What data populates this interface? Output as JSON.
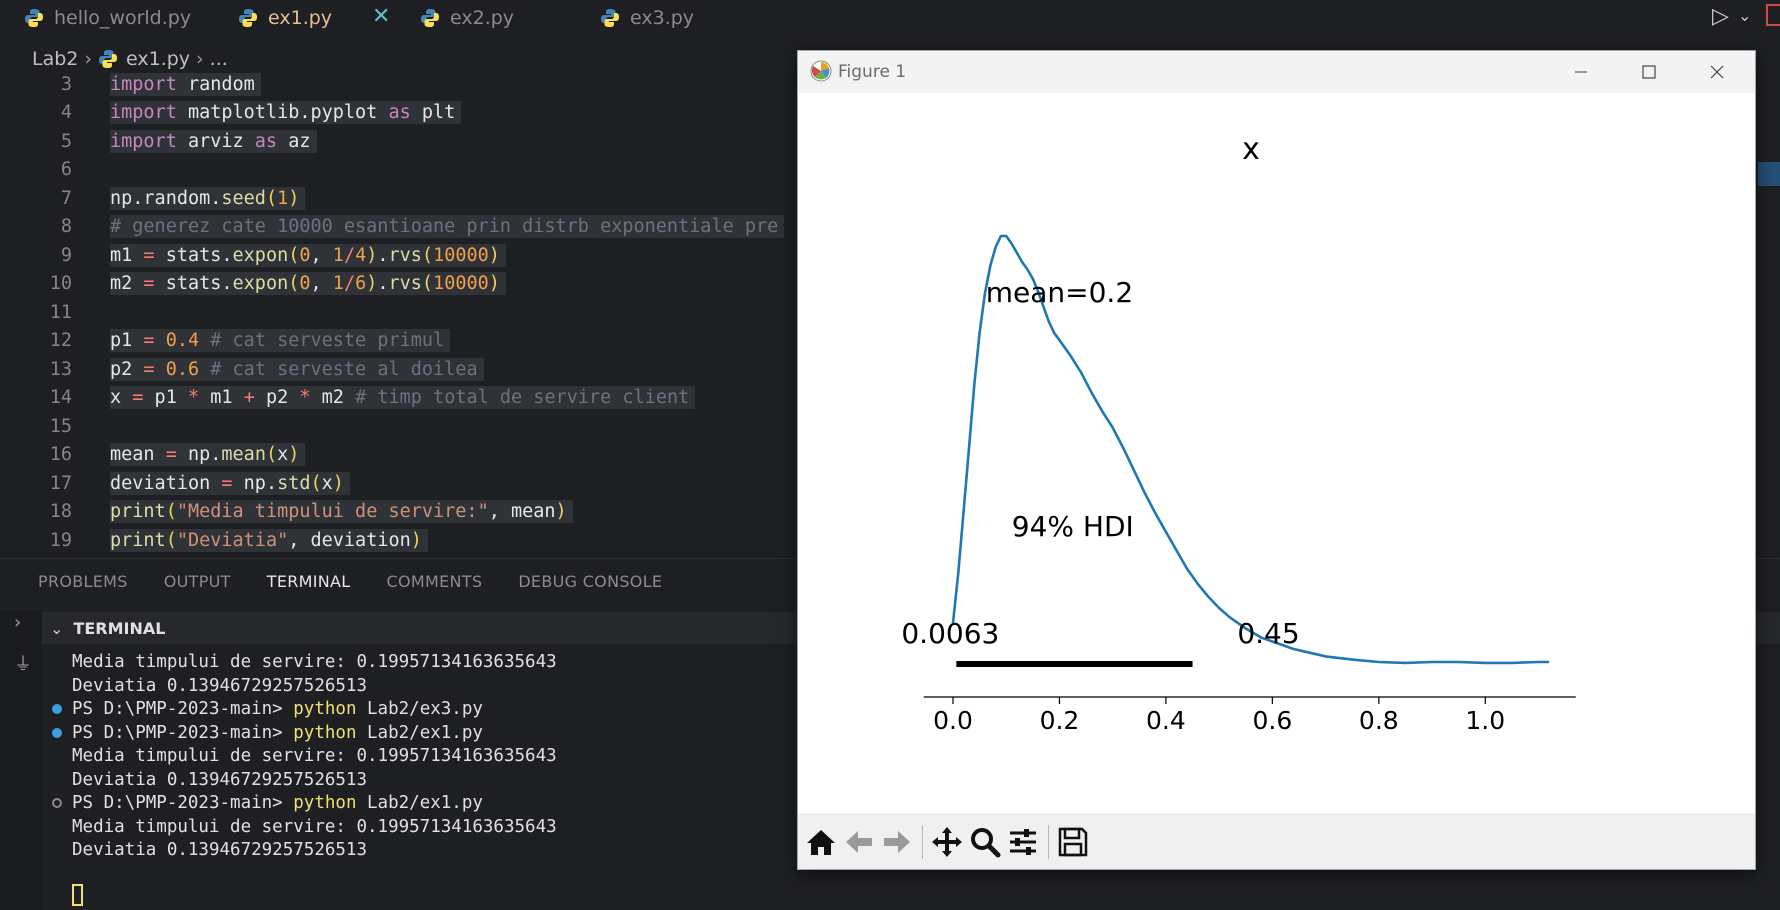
{
  "tabs": [
    {
      "label": "hello_world.py",
      "active": false
    },
    {
      "label": "ex1.py",
      "active": true
    },
    {
      "label": "ex2.py",
      "active": false
    },
    {
      "label": "ex3.py",
      "active": false
    }
  ],
  "tab_close_glyph": "✕",
  "breadcrumb": {
    "folder": "Lab2",
    "file": "ex1.py",
    "more": "..."
  },
  "editor": {
    "lines": [
      {
        "n": "3",
        "tokens": [
          [
            "kw",
            "import"
          ],
          [
            "plain",
            " random"
          ]
        ]
      },
      {
        "n": "4",
        "tokens": [
          [
            "kw",
            "import"
          ],
          [
            "plain",
            " matplotlib.pyplot "
          ],
          [
            "kw",
            "as"
          ],
          [
            "plain",
            " plt"
          ]
        ]
      },
      {
        "n": "5",
        "tokens": [
          [
            "kw",
            "import"
          ],
          [
            "plain",
            " arviz "
          ],
          [
            "kw",
            "as"
          ],
          [
            "plain",
            " az"
          ]
        ]
      },
      {
        "n": "6",
        "tokens": []
      },
      {
        "n": "7",
        "tokens": [
          [
            "plain",
            "np.random."
          ],
          [
            "fn",
            "seed"
          ],
          [
            "par",
            "("
          ],
          [
            "num",
            "1"
          ],
          [
            "par",
            ")"
          ]
        ]
      },
      {
        "n": "8",
        "tokens": [
          [
            "cm",
            "# generez cate 10000 esantioane prin distrb exponentiale pre"
          ]
        ]
      },
      {
        "n": "9",
        "tokens": [
          [
            "plain",
            "m1 "
          ],
          [
            "op",
            "="
          ],
          [
            "plain",
            " stats."
          ],
          [
            "fn",
            "expon"
          ],
          [
            "par",
            "("
          ],
          [
            "num",
            "0"
          ],
          [
            "plain",
            ", "
          ],
          [
            "num",
            "1"
          ],
          [
            "op",
            "/"
          ],
          [
            "num",
            "4"
          ],
          [
            "par",
            ")"
          ],
          [
            "plain",
            "."
          ],
          [
            "fn",
            "rvs"
          ],
          [
            "par",
            "("
          ],
          [
            "num",
            "10000"
          ],
          [
            "par",
            ")"
          ]
        ]
      },
      {
        "n": "10",
        "tokens": [
          [
            "plain",
            "m2 "
          ],
          [
            "op",
            "="
          ],
          [
            "plain",
            " stats."
          ],
          [
            "fn",
            "expon"
          ],
          [
            "par",
            "("
          ],
          [
            "num",
            "0"
          ],
          [
            "plain",
            ", "
          ],
          [
            "num",
            "1"
          ],
          [
            "op",
            "/"
          ],
          [
            "num",
            "6"
          ],
          [
            "par",
            ")"
          ],
          [
            "plain",
            "."
          ],
          [
            "fn",
            "rvs"
          ],
          [
            "par",
            "("
          ],
          [
            "num",
            "10000"
          ],
          [
            "par",
            ")"
          ]
        ]
      },
      {
        "n": "11",
        "tokens": []
      },
      {
        "n": "12",
        "tokens": [
          [
            "plain",
            "p1 "
          ],
          [
            "op",
            "="
          ],
          [
            "plain",
            " "
          ],
          [
            "num",
            "0.4"
          ],
          [
            "plain",
            " "
          ],
          [
            "cm",
            "# cat serveste primul"
          ]
        ]
      },
      {
        "n": "13",
        "tokens": [
          [
            "plain",
            "p2 "
          ],
          [
            "op",
            "="
          ],
          [
            "plain",
            " "
          ],
          [
            "num",
            "0.6"
          ],
          [
            "plain",
            " "
          ],
          [
            "cm",
            "# cat serveste al doilea"
          ]
        ]
      },
      {
        "n": "14",
        "tokens": [
          [
            "plain",
            "x "
          ],
          [
            "op",
            "="
          ],
          [
            "plain",
            " p1 "
          ],
          [
            "op",
            "*"
          ],
          [
            "plain",
            " m1 "
          ],
          [
            "op",
            "+"
          ],
          [
            "plain",
            " p2 "
          ],
          [
            "op",
            "*"
          ],
          [
            "plain",
            " m2 "
          ],
          [
            "cm",
            "# timp total de servire client"
          ]
        ]
      },
      {
        "n": "15",
        "tokens": []
      },
      {
        "n": "16",
        "tokens": [
          [
            "plain",
            "mean "
          ],
          [
            "op",
            "="
          ],
          [
            "plain",
            " np."
          ],
          [
            "fn",
            "mean"
          ],
          [
            "par",
            "("
          ],
          [
            "plain",
            "x"
          ],
          [
            "par",
            ")"
          ]
        ]
      },
      {
        "n": "17",
        "tokens": [
          [
            "plain",
            "deviation "
          ],
          [
            "op",
            "="
          ],
          [
            "plain",
            " np."
          ],
          [
            "fn",
            "std"
          ],
          [
            "par",
            "("
          ],
          [
            "plain",
            "x"
          ],
          [
            "par",
            ")"
          ]
        ]
      },
      {
        "n": "18",
        "tokens": [
          [
            "fn",
            "print"
          ],
          [
            "par",
            "("
          ],
          [
            "str",
            "\"Media timpului de servire:\""
          ],
          [
            "plain",
            ", mean"
          ],
          [
            "par",
            ")"
          ]
        ]
      },
      {
        "n": "19",
        "tokens": [
          [
            "fn",
            "print"
          ],
          [
            "par",
            "("
          ],
          [
            "str",
            "\"Deviatia\""
          ],
          [
            "plain",
            ", deviation"
          ],
          [
            "par",
            ")"
          ]
        ]
      }
    ]
  },
  "panel": {
    "tabs": [
      {
        "label": "PROBLEMS",
        "active": false
      },
      {
        "label": "OUTPUT",
        "active": false
      },
      {
        "label": "TERMINAL",
        "active": true
      },
      {
        "label": "COMMENTS",
        "active": false
      },
      {
        "label": "DEBUG CONSOLE",
        "active": false
      }
    ],
    "terminal_title": "TERMINAL"
  },
  "terminal": {
    "lines": [
      {
        "dot": "",
        "text": "Media timpului de servire: 0.19957134163635643"
      },
      {
        "dot": "",
        "text": "Deviatia 0.13946729257526513"
      },
      {
        "dot": "blue",
        "prompt": "PS D:\\PMP-2023-main> ",
        "cmd": "python",
        "arg": " Lab2/ex3.py"
      },
      {
        "dot": "blue",
        "prompt": "PS D:\\PMP-2023-main> ",
        "cmd": "python",
        "arg": " Lab2/ex1.py"
      },
      {
        "dot": "",
        "text": "Media timpului de servire: 0.19957134163635643"
      },
      {
        "dot": "",
        "text": "Deviatia 0.13946729257526513"
      },
      {
        "dot": "hollow",
        "prompt": "PS D:\\PMP-2023-main> ",
        "cmd": "python",
        "arg": " Lab2/ex1.py"
      },
      {
        "dot": "",
        "text": "Media timpului de servire: 0.19957134163635643"
      },
      {
        "dot": "",
        "text": "Deviatia 0.13946729257526513"
      }
    ]
  },
  "figure": {
    "window_title": "Figure 1",
    "toolbar_icons": [
      "home-icon",
      "back-arrow-icon",
      "forward-arrow-icon",
      "pan-icon",
      "zoom-icon",
      "configure-subplots-icon",
      "save-icon"
    ]
  },
  "chart_data": {
    "type": "line",
    "title": "x",
    "annotations": {
      "mean_label": "mean=0.2",
      "hdi_label": "94% HDI",
      "hdi_low_label": "0.0063",
      "hdi_high_label": "0.45"
    },
    "hdi": [
      0.0063,
      0.45
    ],
    "xlim": [
      -0.05,
      1.2
    ],
    "xticks": [
      0.0,
      0.2,
      0.4,
      0.6,
      0.8,
      1.0
    ],
    "xtick_labels": [
      "0.0",
      "0.2",
      "0.4",
      "0.6",
      "0.8",
      "1.0"
    ],
    "series": [
      {
        "color": "#1f77b4",
        "x": [
          0.0,
          0.01,
          0.02,
          0.03,
          0.04,
          0.05,
          0.06,
          0.07,
          0.08,
          0.09,
          0.1,
          0.11,
          0.12,
          0.13,
          0.14,
          0.15,
          0.16,
          0.17,
          0.18,
          0.19,
          0.2,
          0.22,
          0.24,
          0.26,
          0.28,
          0.3,
          0.32,
          0.34,
          0.36,
          0.38,
          0.4,
          0.42,
          0.44,
          0.46,
          0.48,
          0.5,
          0.52,
          0.55,
          0.58,
          0.61,
          0.64,
          0.67,
          0.7,
          0.73,
          0.76,
          0.8,
          0.85,
          0.9,
          0.95,
          1.0,
          1.05,
          1.1,
          1.12
        ],
        "y": [
          0.28,
          0.55,
          0.88,
          1.22,
          1.56,
          1.84,
          2.05,
          2.2,
          2.3,
          2.36,
          2.36,
          2.32,
          2.27,
          2.22,
          2.18,
          2.13,
          2.06,
          1.98,
          1.9,
          1.84,
          1.8,
          1.72,
          1.63,
          1.52,
          1.42,
          1.33,
          1.22,
          1.1,
          0.98,
          0.87,
          0.77,
          0.67,
          0.57,
          0.49,
          0.42,
          0.36,
          0.31,
          0.25,
          0.2,
          0.17,
          0.14,
          0.12,
          0.1,
          0.09,
          0.08,
          0.07,
          0.065,
          0.07,
          0.07,
          0.065,
          0.065,
          0.07,
          0.07
        ]
      }
    ]
  }
}
